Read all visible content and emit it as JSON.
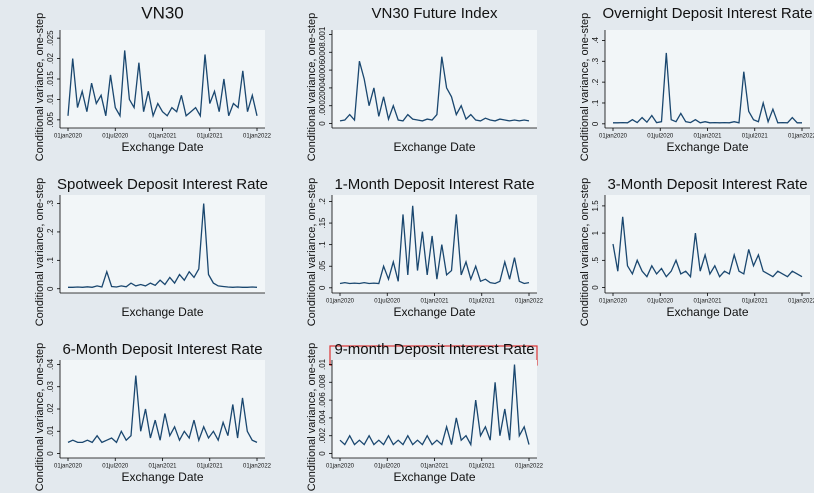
{
  "chart_data": [
    {
      "type": "line",
      "title": "VN30",
      "xlabel": "Exchange Date",
      "ylabel": "Conditional variance, one-step",
      "color": "#1a476f",
      "xticks": [
        "01jan2020",
        "01jul2020",
        "01jan2021",
        "01jul2021",
        "01jan2022"
      ],
      "ylim": [
        0.003,
        0.027
      ],
      "yticks": [
        {
          "value": 0.005,
          "label": ".005"
        },
        {
          "value": 0.01,
          "label": ".01"
        },
        {
          "value": 0.015,
          "label": ".015"
        },
        {
          "value": 0.02,
          "label": ".02"
        },
        {
          "value": 0.025,
          "label": ".025"
        }
      ],
      "values": [
        0.006,
        0.02,
        0.008,
        0.012,
        0.007,
        0.014,
        0.009,
        0.011,
        0.006,
        0.016,
        0.008,
        0.006,
        0.022,
        0.01,
        0.008,
        0.019,
        0.007,
        0.012,
        0.006,
        0.009,
        0.007,
        0.006,
        0.008,
        0.007,
        0.011,
        0.006,
        0.007,
        0.008,
        0.006,
        0.021,
        0.009,
        0.012,
        0.007,
        0.015,
        0.006,
        0.009,
        0.008,
        0.017,
        0.007,
        0.011,
        0.006
      ]
    },
    {
      "type": "line",
      "title": "VN30 Future Index",
      "xlabel": "Exchange Date",
      "ylabel": "Conditional variance, one-step",
      "color": "#1a476f",
      "ylim": [
        -5e-05,
        0.00105
      ],
      "yticks": [
        0,
        {
          "value": 0.0002,
          "label": ".0002"
        },
        {
          "value": 0.0004,
          "label": ".0004"
        },
        {
          "value": 0.0006,
          "label": ".0006"
        },
        {
          "value": 0.0008,
          "label": ".0008"
        },
        {
          "value": 0.001,
          "label": ".001"
        }
      ],
      "values": [
        3e-05,
        4e-05,
        0.0001,
        4e-05,
        0.0007,
        0.0005,
        0.0002,
        0.0004,
        8e-05,
        0.0003,
        5e-05,
        0.0002,
        4e-05,
        3e-05,
        0.0001,
        5e-05,
        4e-05,
        3e-05,
        5e-05,
        4e-05,
        0.0001,
        0.00075,
        0.0004,
        0.0003,
        0.0001,
        0.0002,
        5e-05,
        0.0001,
        4e-05,
        3e-05,
        6e-05,
        4e-05,
        3e-05,
        5e-05,
        4e-05,
        3e-05,
        4e-05,
        3e-05,
        4e-05,
        3e-05
      ]
    },
    {
      "type": "line",
      "title": "Overnight Deposit Interest Rate",
      "xlabel": "Exchange Date",
      "ylabel": "Conditional variance, one-step",
      "color": "#1a476f",
      "xticks": [
        "01jan2020",
        "01jul2020",
        "01jan2021",
        "01jul2021",
        "01jan2022"
      ],
      "ylim": [
        -0.02,
        0.45
      ],
      "yticks": [
        0,
        {
          "value": 0.1,
          "label": ".1"
        },
        {
          "value": 0.2,
          "label": ".2"
        },
        {
          "value": 0.3,
          "label": ".3"
        },
        {
          "value": 0.4,
          "label": ".4"
        }
      ],
      "values": [
        0.005,
        0.005,
        0.006,
        0.005,
        0.02,
        0.006,
        0.03,
        0.008,
        0.04,
        0.006,
        0.01,
        0.34,
        0.02,
        0.01,
        0.05,
        0.01,
        0.006,
        0.02,
        0.005,
        0.01,
        0.005,
        0.006,
        0.005,
        0.006,
        0.005,
        0.01,
        0.005,
        0.25,
        0.06,
        0.02,
        0.01,
        0.1,
        0.01,
        0.07,
        0.005,
        0.006,
        0.005,
        0.03,
        0.005,
        0.005
      ]
    },
    {
      "type": "line",
      "title": "Spotweek Deposit Interest Rate",
      "xlabel": "Exchange Date",
      "ylabel": "Conditional variance, one-step",
      "color": "#1a476f",
      "ylim": [
        -0.015,
        0.33
      ],
      "yticks": [
        0,
        {
          "value": 0.1,
          "label": ".1"
        },
        {
          "value": 0.2,
          "label": ".2"
        },
        {
          "value": 0.3,
          "label": ".3"
        }
      ],
      "values": [
        0.005,
        0.005,
        0.006,
        0.005,
        0.007,
        0.005,
        0.01,
        0.006,
        0.06,
        0.008,
        0.006,
        0.01,
        0.007,
        0.02,
        0.01,
        0.015,
        0.01,
        0.02,
        0.012,
        0.03,
        0.015,
        0.04,
        0.02,
        0.05,
        0.03,
        0.06,
        0.04,
        0.07,
        0.3,
        0.05,
        0.02,
        0.01,
        0.008,
        0.006,
        0.005,
        0.006,
        0.005,
        0.005,
        0.006,
        0.005
      ]
    },
    {
      "type": "line",
      "title": "1-Month Deposit Interest Rate",
      "xlabel": "Exchange Date",
      "ylabel": "Conditional variance, one-step",
      "color": "#1a476f",
      "xticks": [
        "01jan2020",
        "01jul2020",
        "01jan2021",
        "01jul2021",
        "01jan2022"
      ],
      "ylim": [
        -0.012,
        0.215
      ],
      "yticks": [
        0,
        {
          "value": 0.05,
          "label": ".05"
        },
        {
          "value": 0.1,
          "label": ".1"
        },
        {
          "value": 0.15,
          "label": ".15"
        },
        {
          "value": 0.2,
          "label": ".2"
        }
      ],
      "values": [
        0.01,
        0.012,
        0.01,
        0.011,
        0.01,
        0.012,
        0.01,
        0.011,
        0.01,
        0.05,
        0.02,
        0.06,
        0.015,
        0.17,
        0.03,
        0.19,
        0.04,
        0.13,
        0.03,
        0.12,
        0.02,
        0.1,
        0.03,
        0.04,
        0.17,
        0.03,
        0.06,
        0.02,
        0.05,
        0.015,
        0.02,
        0.012,
        0.01,
        0.015,
        0.06,
        0.02,
        0.07,
        0.015,
        0.01,
        0.012
      ]
    },
    {
      "type": "line",
      "title": "3-Month Deposit Interest Rate",
      "xlabel": "Exchange Date",
      "ylabel": "Conditional variance, one-step",
      "color": "#1a476f",
      "xticks": [
        "01jan2020",
        "01jul2020",
        "01jan2021",
        "01jul2021",
        "01jan2022"
      ],
      "ylim": [
        -0.1,
        1.7
      ],
      "yticks": [
        0,
        {
          "value": 0.5,
          "label": ".5"
        },
        1,
        1.5
      ],
      "values": [
        0.8,
        0.3,
        1.3,
        0.4,
        0.25,
        0.5,
        0.3,
        0.2,
        0.4,
        0.25,
        0.35,
        0.2,
        0.3,
        0.5,
        0.25,
        0.3,
        0.2,
        1.0,
        0.3,
        0.6,
        0.25,
        0.4,
        0.2,
        0.3,
        0.25,
        0.6,
        0.3,
        0.25,
        0.7,
        0.4,
        0.6,
        0.3,
        0.25,
        0.2,
        0.3,
        0.25,
        0.2,
        0.3,
        0.25,
        0.2
      ]
    },
    {
      "type": "line",
      "title": "6-Month Deposit Interest Rate",
      "xlabel": "Exchange Date",
      "ylabel": "Conditional variance, one-step",
      "color": "#1a476f",
      "xticks": [
        "01jan2020",
        "01jul2020",
        "01jan2021",
        "01jul2021",
        "01jan2022"
      ],
      "ylim": [
        -0.002,
        0.042
      ],
      "yticks": [
        0,
        {
          "value": 0.01,
          "label": ".01"
        },
        {
          "value": 0.02,
          "label": ".02"
        },
        {
          "value": 0.03,
          "label": ".03"
        },
        {
          "value": 0.04,
          "label": ".04"
        }
      ],
      "values": [
        0.005,
        0.006,
        0.005,
        0.005,
        0.006,
        0.005,
        0.008,
        0.005,
        0.006,
        0.007,
        0.005,
        0.01,
        0.006,
        0.008,
        0.035,
        0.01,
        0.02,
        0.007,
        0.015,
        0.006,
        0.018,
        0.008,
        0.012,
        0.006,
        0.01,
        0.007,
        0.015,
        0.006,
        0.012,
        0.007,
        0.01,
        0.006,
        0.014,
        0.008,
        0.022,
        0.007,
        0.025,
        0.01,
        0.006,
        0.005
      ]
    },
    {
      "type": "line",
      "title": "9-month Deposit Interest Rate",
      "xlabel": "Exchange Date",
      "ylabel": "Conditional variance, one-step",
      "color": "#1a476f",
      "xticks": [
        "01jan2020",
        "01jul2020",
        "01jan2021",
        "01jul2021",
        "01jan2022"
      ],
      "ylim": [
        -0.0005,
        0.0105
      ],
      "yticks": [
        0,
        {
          "value": 0.002,
          "label": ".002"
        },
        {
          "value": 0.004,
          "label": ".004"
        },
        {
          "value": 0.006,
          "label": ".006"
        },
        {
          "value": 0.008,
          "label": ".008"
        },
        {
          "value": 0.01,
          "label": ".01"
        }
      ],
      "values": [
        0.0015,
        0.001,
        0.002,
        0.001,
        0.0015,
        0.001,
        0.002,
        0.001,
        0.0015,
        0.001,
        0.002,
        0.001,
        0.0015,
        0.001,
        0.002,
        0.001,
        0.0015,
        0.001,
        0.002,
        0.001,
        0.0015,
        0.001,
        0.003,
        0.001,
        0.004,
        0.0015,
        0.002,
        0.001,
        0.006,
        0.002,
        0.003,
        0.0015,
        0.008,
        0.002,
        0.005,
        0.0015,
        0.01,
        0.002,
        0.003,
        0.001
      ]
    }
  ]
}
